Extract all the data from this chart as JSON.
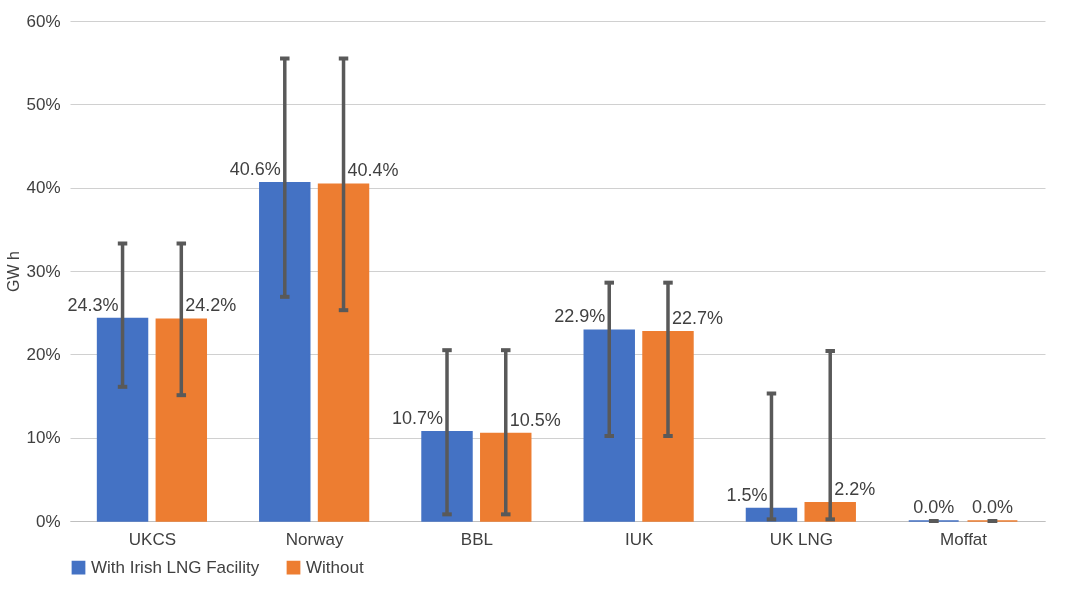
{
  "chart_data": {
    "type": "bar",
    "ylabel": "GW h",
    "categories": [
      "UKCS",
      "Norway",
      "BBL",
      "IUK",
      "UK LNG",
      "Moffat"
    ],
    "series": [
      {
        "name": "With Irish LNG Facility",
        "color": "#4472c4",
        "values": [
          24.3,
          40.6,
          10.7,
          22.9,
          1.5,
          0.0
        ],
        "value_labels": [
          "24.3%",
          "40.6%",
          "10.7%",
          "22.9%",
          "1.5%",
          "0.0%"
        ],
        "errors": [
          [
            16.1,
            33.3
          ],
          [
            26.9,
            55.5
          ],
          [
            0.8,
            20.5
          ],
          [
            10.2,
            28.6
          ],
          [
            0.2,
            15.3
          ],
          [
            0,
            0
          ]
        ]
      },
      {
        "name": "Without",
        "color": "#ed7d31",
        "values": [
          24.2,
          40.4,
          10.5,
          22.7,
          2.2,
          0.0
        ],
        "value_labels": [
          "24.2%",
          "40.4%",
          "10.5%",
          "22.7%",
          "2.2%",
          "0.0%"
        ],
        "errors": [
          [
            15.1,
            33.3
          ],
          [
            25.3,
            55.5
          ],
          [
            0.8,
            20.5
          ],
          [
            10.2,
            28.6
          ],
          [
            0.2,
            20.4
          ],
          [
            0,
            0
          ]
        ]
      }
    ],
    "ylim": [
      0,
      60
    ],
    "yticks": [
      {
        "value": 0,
        "label": "0%"
      },
      {
        "value": 10,
        "label": "10%"
      },
      {
        "value": 20,
        "label": "20%"
      },
      {
        "value": 30,
        "label": "30%"
      },
      {
        "value": 40,
        "label": "40%"
      },
      {
        "value": 50,
        "label": "50%"
      },
      {
        "value": 60,
        "label": "60%"
      }
    ],
    "grid": "y",
    "legend": "bottom"
  }
}
